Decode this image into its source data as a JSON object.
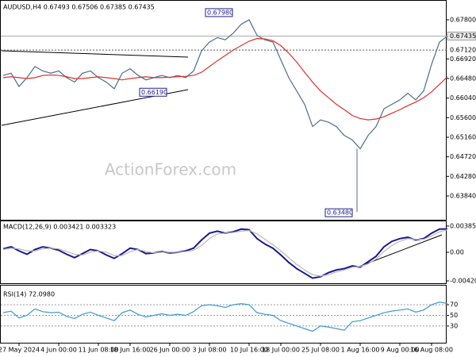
{
  "chart_data": [
    {
      "type": "line",
      "title": "AUDUSD,H4 0.67493 0.67506 0.67385 0.67435",
      "watermark": "ActionForex.com",
      "ylim": [
        0.63305,
        0.6821
      ],
      "yticks": [
        {
          "value": 0.678,
          "label": "0.67800"
        },
        {
          "value": 0.6692,
          "label": "0.66920"
        },
        {
          "value": 0.6648,
          "label": "0.66480"
        },
        {
          "value": 0.6604,
          "label": "0.66040"
        },
        {
          "value": 0.656,
          "label": "0.65600"
        },
        {
          "value": 0.6516,
          "label": "0.65160"
        },
        {
          "value": 0.6472,
          "label": "0.64720"
        },
        {
          "value": 0.6428,
          "label": "0.64280"
        },
        {
          "value": 0.6384,
          "label": "0.63840"
        }
      ],
      "hlines": [
        {
          "value": 0.67435,
          "label": "0.67435"
        },
        {
          "value": 0.6712,
          "label": "0.67120"
        }
      ],
      "annotations": [
        {
          "value": 0.6798,
          "label": "0.67980"
        },
        {
          "value": 0.6619,
          "label": "0.66190"
        },
        {
          "value": 0.6348,
          "label": "0.63480"
        }
      ],
      "series": [
        {
          "color": "#4a6f8a",
          "values": [
            0.6655,
            0.666,
            0.663,
            0.665,
            0.6675,
            0.6665,
            0.666,
            0.6665,
            0.665,
            0.664,
            0.666,
            0.6665,
            0.665,
            0.664,
            0.6625,
            0.666,
            0.667,
            0.6655,
            0.6645,
            0.665,
            0.6655,
            0.665,
            0.6655,
            0.665,
            0.6665,
            0.671,
            0.673,
            0.674,
            0.6735,
            0.675,
            0.677,
            0.678,
            0.6745,
            0.6735,
            0.673,
            0.669,
            0.665,
            0.662,
            0.659,
            0.654,
            0.6555,
            0.655,
            0.654,
            0.652,
            0.651,
            0.649,
            0.652,
            0.654,
            0.658,
            0.659,
            0.66,
            0.6615,
            0.66,
            0.662,
            0.668,
            0.673,
            0.67435
          ]
        },
        {
          "color": "#e0302a",
          "values": [
            0.665,
            0.6652,
            0.665,
            0.6648,
            0.665,
            0.6655,
            0.6656,
            0.6655,
            0.6652,
            0.6648,
            0.6648,
            0.665,
            0.6652,
            0.665,
            0.6648,
            0.6645,
            0.6648,
            0.665,
            0.6652,
            0.665,
            0.665,
            0.6651,
            0.6652,
            0.6653,
            0.6655,
            0.6662,
            0.6675,
            0.6688,
            0.67,
            0.6712,
            0.6722,
            0.6732,
            0.6738,
            0.6737,
            0.6733,
            0.6722,
            0.6705,
            0.6685,
            0.6662,
            0.664,
            0.662,
            0.6605,
            0.659,
            0.6578,
            0.6565,
            0.6558,
            0.6555,
            0.6557,
            0.6562,
            0.657,
            0.6578,
            0.6587,
            0.6595,
            0.6605,
            0.6618,
            0.6635,
            0.6652
          ]
        }
      ]
    },
    {
      "type": "line",
      "title": "MACD(12,26,9) 0.003421 0.003323",
      "ylim": [
        -0.00455,
        0.00454
      ],
      "yticks": [
        0.003852,
        {
          "value": 0,
          "label": "0.00"
        },
        -0.004204
      ],
      "series": [
        {
          "color": "#1a1a8c",
          "values": [
            0.0005,
            0.0008,
            0.0002,
            -0.0003,
            0.0004,
            0.0008,
            0.0006,
            0.0003,
            -0.0003,
            -0.0008,
            -0.0002,
            0.0004,
            0.0002,
            -0.0004,
            -0.0009,
            -0.0002,
            0.0006,
            0.0004,
            -0.0002,
            -0.0001,
            0.0001,
            -0.0001,
            0,
            0.0002,
            0.0006,
            0.0018,
            0.0028,
            0.0031,
            0.0028,
            0.003,
            0.0034,
            0.0033,
            0.002,
            0.0012,
            0.0006,
            -0.0004,
            -0.0015,
            -0.0024,
            -0.0031,
            -0.0038,
            -0.0036,
            -0.003,
            -0.0026,
            -0.0024,
            -0.002,
            -0.0022,
            -0.0014,
            -0.0006,
            0.0008,
            0.0016,
            0.002,
            0.0022,
            0.0018,
            0.002,
            0.0028,
            0.0034,
            0.003421
          ]
        },
        {
          "color": "#b8b8b8",
          "values": [
            0.0004,
            0.0006,
            0.0005,
            0.0002,
            0.0002,
            0.0005,
            0.0006,
            0.0005,
            0.0001,
            -0.0003,
            -0.0004,
            0,
            0.0002,
            0,
            -0.0005,
            -0.0005,
            0.0001,
            0.0004,
            0.0001,
            -0.0001,
            0,
            0,
            0,
            0.0001,
            0.0003,
            0.001,
            0.002,
            0.0027,
            0.0028,
            0.0029,
            0.0031,
            0.0032,
            0.0027,
            0.0019,
            0.0011,
            0.0002,
            -0.0008,
            -0.0018,
            -0.0026,
            -0.0033,
            -0.0035,
            -0.0033,
            -0.0029,
            -0.0026,
            -0.0022,
            -0.0021,
            -0.0017,
            -0.001,
            0.0001,
            0.001,
            0.0016,
            0.002,
            0.0019,
            0.0019,
            0.0024,
            0.003,
            0.003323
          ]
        }
      ]
    },
    {
      "type": "line",
      "title": "RSI(14) 72.0980",
      "ylim": [
        0,
        100
      ],
      "yticks": [
        70,
        50,
        30
      ],
      "grid": true,
      "categories": [
        null,
        null,
        "27 May 2024",
        null,
        null,
        null,
        null,
        "4 Jun 00:00",
        null,
        null,
        null,
        null,
        "11 Jun 08:00",
        null,
        null,
        null,
        "18 Jun 16:00",
        null,
        null,
        null,
        null,
        "26 Jun 00:00",
        null,
        null,
        null,
        null,
        "3 Jul 08:00",
        null,
        null,
        null,
        null,
        "10 Jul 16:00",
        null,
        null,
        null,
        "18 Jul 00:00",
        null,
        null,
        null,
        null,
        "25 Jul 08:00",
        null,
        null,
        null,
        null,
        "1 Aug 16:00",
        null,
        null,
        null,
        null,
        "9 Aug 00:00",
        null,
        null,
        null,
        "16 Aug 08:00",
        null,
        null
      ],
      "series": [
        {
          "color": "#3a9ad9",
          "values": [
            55,
            58,
            45,
            50,
            62,
            57,
            55,
            56,
            48,
            44,
            52,
            56,
            50,
            45,
            40,
            55,
            60,
            52,
            47,
            50,
            53,
            50,
            52,
            50,
            57,
            68,
            70,
            68,
            65,
            70,
            72,
            70,
            55,
            52,
            50,
            40,
            35,
            30,
            25,
            20,
            30,
            28,
            25,
            22,
            38,
            40,
            45,
            50,
            55,
            58,
            60,
            62,
            56,
            60,
            70,
            75,
            72.098
          ]
        }
      ]
    }
  ]
}
